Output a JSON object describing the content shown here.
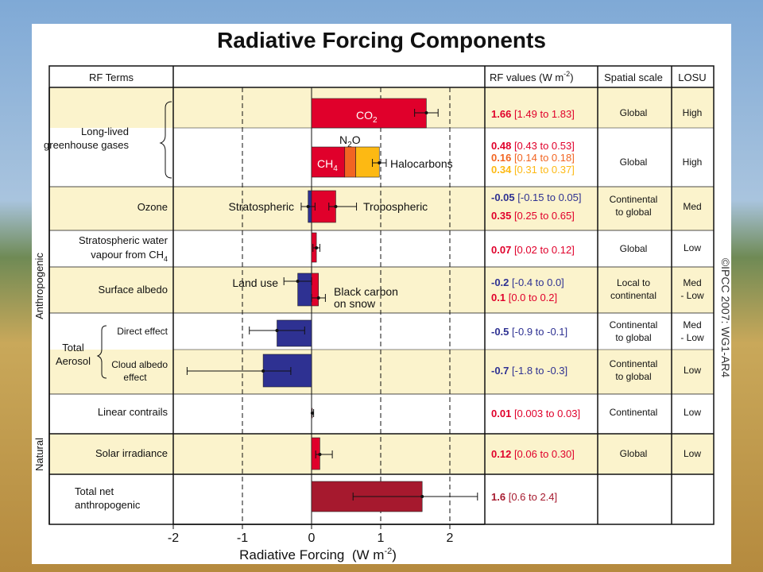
{
  "title": "Radiative Forcing Components",
  "header": {
    "rf_terms": "RF Terms",
    "rf_values": "RF values (W m",
    "rf_values_sup": "-2",
    "rf_values_close": ")",
    "spatial_scale": "Spatial scale",
    "losu": "LOSU"
  },
  "side_labels": {
    "anthropogenic": "Anthropogenic",
    "natural": "Natural"
  },
  "copyright": "©IPCC 2007: WG1-AR4",
  "colors": {
    "red": "#e0002b",
    "blue": "#2e3192",
    "orange": "#f26522",
    "yellow": "#fdb913",
    "dark_red": "#a6192e",
    "band": "#fbf3cc"
  },
  "rows": [
    {
      "label_lines": [
        "Long-lived",
        "greenhouse gases"
      ],
      "bar_labels": [
        {
          "text": "CO",
          "sub": "2",
          "white": true
        },
        {
          "text": "N",
          "sub": "2",
          "tail": "O"
        },
        {
          "text": "CH",
          "sub": "4",
          "white": true
        },
        {
          "text": "Halocarbons"
        }
      ],
      "values_groups": [
        [
          {
            "best": "1.66",
            "range": "[1.49 to 1.83]",
            "color": "#e0002b"
          }
        ],
        [
          {
            "best": "0.48",
            "range": "[0.43 to 0.53]",
            "color": "#e0002b"
          },
          {
            "best": "0.16",
            "range": "[0.14 to 0.18]",
            "color": "#f26522"
          },
          {
            "best": "0.34",
            "range": "[0.31 to 0.37]",
            "color": "#fdb913"
          }
        ]
      ],
      "spatial_groups": [
        [
          "Global"
        ],
        [
          "Global"
        ]
      ],
      "losu_groups": [
        [
          "High"
        ],
        [
          "High"
        ]
      ]
    },
    {
      "label_lines": [
        "Ozone"
      ],
      "bar_labels": [
        {
          "text": "Stratospheric"
        },
        {
          "text": "Tropospheric"
        }
      ],
      "values": [
        {
          "best": "-0.05",
          "range": "[-0.15 to 0.05]",
          "color": "#2e3192"
        },
        {
          "best": "0.35",
          "range": "[0.25 to 0.65]",
          "color": "#e0002b"
        }
      ],
      "spatial": [
        "Continental",
        "to global"
      ],
      "losu": [
        "Med"
      ]
    },
    {
      "label_lines": [
        "Stratospheric water",
        "vapour from CH"
      ],
      "label_sub": "4",
      "values": [
        {
          "best": "0.07",
          "range": "[0.02 to 0.12]",
          "color": "#e0002b"
        }
      ],
      "spatial": [
        "Global"
      ],
      "losu": [
        "Low"
      ]
    },
    {
      "label_lines": [
        "Surface albedo"
      ],
      "bar_labels": [
        {
          "text": "Land use"
        },
        {
          "text": "Black carbon"
        },
        {
          "text": "on snow"
        }
      ],
      "values": [
        {
          "best": "-0.2",
          "range": "[-0.4 to 0.0]",
          "color": "#2e3192"
        },
        {
          "best": "0.1",
          "range": "[0.0 to 0.2]",
          "color": "#e0002b"
        }
      ],
      "spatial": [
        "Local to",
        "continental"
      ],
      "losu": [
        "Med",
        "- Low"
      ]
    },
    {
      "label_lines": [
        "Total",
        "Aerosol"
      ],
      "sub_labels": [
        [
          "Direct effect"
        ],
        [
          "Cloud albedo",
          "effect"
        ]
      ],
      "values_groups": [
        [
          {
            "best": "-0.5",
            "range": "[-0.9 to -0.1]",
            "color": "#2e3192"
          }
        ],
        [
          {
            "best": "-0.7",
            "range": "[-1.8 to -0.3]",
            "color": "#2e3192"
          }
        ]
      ],
      "spatial_groups": [
        [
          "Continental",
          "to global"
        ],
        [
          "Continental",
          "to global"
        ]
      ],
      "losu_groups": [
        [
          "Med",
          "- Low"
        ],
        [
          "Low"
        ]
      ]
    },
    {
      "label_lines": [
        "Linear contrails"
      ],
      "values": [
        {
          "best": "0.01",
          "range": "[0.003 to 0.03]",
          "color": "#e0002b"
        }
      ],
      "spatial": [
        "Continental"
      ],
      "losu": [
        "Low"
      ]
    },
    {
      "label_lines": [
        "Solar irradiance"
      ],
      "values": [
        {
          "best": "0.12",
          "range": "[0.06 to 0.30]",
          "color": "#e0002b"
        }
      ],
      "spatial": [
        "Global"
      ],
      "losu": [
        "Low"
      ]
    },
    {
      "label_lines": [
        "Total net",
        "anthropogenic"
      ],
      "values": [
        {
          "best": "1.6",
          "range": "[0.6 to 2.4]",
          "color": "#a6192e"
        }
      ],
      "spatial": [],
      "losu": []
    }
  ],
  "chart_data": {
    "type": "bar",
    "orientation": "horizontal",
    "title": "Radiative Forcing Components",
    "xlabel": "Radiative Forcing",
    "xlabel_unit": "(W m",
    "xlabel_unit_sup": "-2",
    "xlabel_unit_close": ")",
    "xlim": [
      -2,
      2.5
    ],
    "xticks": [
      -2,
      -1,
      0,
      1,
      2
    ],
    "dashed_gridlines_at": [
      -1,
      1,
      2
    ],
    "bars": [
      {
        "name": "CO2",
        "start": 0,
        "value": 1.66,
        "low": 1.49,
        "high": 1.83,
        "color": "#e0002b"
      },
      {
        "name": "CH4",
        "start": 0,
        "value": 0.48,
        "color": "#e0002b"
      },
      {
        "name": "N2O",
        "start": 0.48,
        "value": 0.16,
        "color": "#f26522"
      },
      {
        "name": "Halocarbons",
        "start": 0.64,
        "value": 0.34,
        "low": 0.88,
        "high": 1.08,
        "color": "#fdb913"
      },
      {
        "name": "Stratospheric ozone",
        "start": 0,
        "value": -0.05,
        "low": -0.15,
        "high": 0.05,
        "color": "#2e3192"
      },
      {
        "name": "Tropospheric ozone",
        "start": 0,
        "value": 0.35,
        "low": 0.25,
        "high": 0.65,
        "color": "#e0002b"
      },
      {
        "name": "Stratospheric water vapour from CH4",
        "start": 0,
        "value": 0.07,
        "low": 0.02,
        "high": 0.12,
        "color": "#e0002b"
      },
      {
        "name": "Land use",
        "start": 0,
        "value": -0.2,
        "low": -0.4,
        "high": 0.0,
        "color": "#2e3192"
      },
      {
        "name": "Black carbon on snow",
        "start": 0,
        "value": 0.1,
        "low": 0.0,
        "high": 0.2,
        "color": "#e0002b"
      },
      {
        "name": "Direct effect",
        "start": 0,
        "value": -0.5,
        "low": -0.9,
        "high": -0.1,
        "color": "#2e3192"
      },
      {
        "name": "Cloud albedo effect",
        "start": 0,
        "value": -0.7,
        "low": -1.8,
        "high": -0.3,
        "color": "#2e3192"
      },
      {
        "name": "Linear contrails",
        "start": 0,
        "value": 0.01,
        "low": 0.003,
        "high": 0.03,
        "color": "#e0002b"
      },
      {
        "name": "Solar irradiance",
        "start": 0,
        "value": 0.12,
        "low": 0.06,
        "high": 0.3,
        "color": "#e0002b"
      },
      {
        "name": "Total net anthropogenic",
        "start": 0,
        "value": 1.6,
        "low": 0.6,
        "high": 2.4,
        "color": "#a6192e"
      }
    ]
  }
}
